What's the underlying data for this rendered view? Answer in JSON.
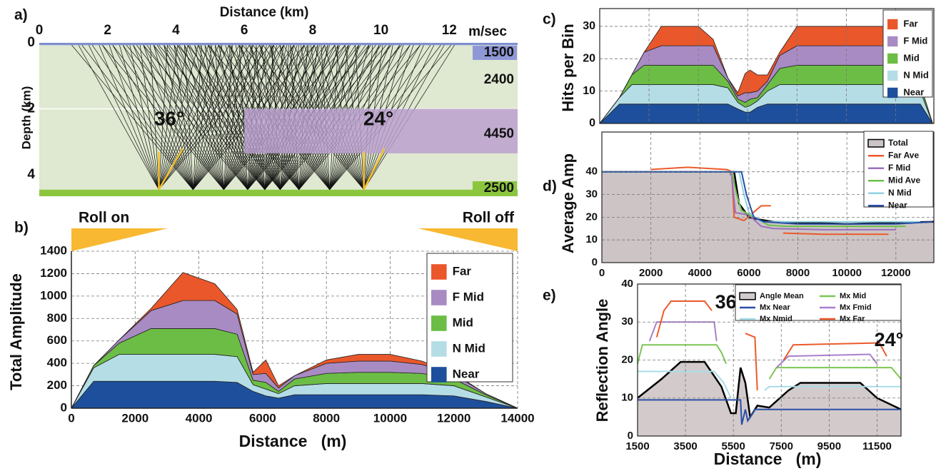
{
  "chart_data": [
    {
      "type": "raypath",
      "panel_label": "a)",
      "title": "Distance (km)",
      "x_unit_label": "m/sec",
      "y_label": "Depth (km)",
      "xlim": [
        0,
        14
      ],
      "ylim": [
        0,
        4.65
      ],
      "xticks": [
        0,
        2,
        4,
        6,
        8,
        10,
        12
      ],
      "yticks": [
        0,
        2,
        4
      ],
      "layers": [
        {
          "velocity": 1500,
          "color": "#7f8fd0",
          "x0": 0,
          "x1": 14,
          "top": 0,
          "bottom": 0.07
        },
        {
          "velocity": 2400,
          "color": "#dfe8d0",
          "x0": 0,
          "x1": 14,
          "top": 0.07,
          "bottom": 4.45
        },
        {
          "velocity": 4450,
          "color": "#bb9fcf",
          "x0": 6,
          "x1": 14,
          "top": 2,
          "bottom": 3.35
        },
        {
          "velocity": 2500,
          "color": "#8cc63f",
          "x0": 0,
          "x1": 14,
          "top": 4.45,
          "bottom": 4.65
        }
      ],
      "annotations": [
        "36°",
        "24°"
      ]
    },
    {
      "type": "stacked_area",
      "panel_label": "b)",
      "x_label": "Distance   (m)",
      "y_label": "Total Amplitude",
      "annotations": [
        "Roll on",
        "Roll off"
      ],
      "xlim": [
        0,
        14000
      ],
      "ylim": [
        0,
        1400
      ],
      "xticks": [
        0,
        2000,
        4000,
        6000,
        8000,
        10000,
        12000,
        14000
      ],
      "yticks": [
        0,
        200,
        400,
        600,
        800,
        1000,
        1200,
        1400
      ],
      "grid": true,
      "legend": "upper right",
      "x": [
        0,
        700,
        1500,
        2500,
        3500,
        4500,
        5200,
        5700,
        6100,
        6500,
        7000,
        8000,
        9000,
        10000,
        11000,
        12000,
        13000,
        14000
      ],
      "series": [
        {
          "name": "Near",
          "color": "#1d4f9c",
          "values": [
            0,
            240,
            240,
            240,
            240,
            240,
            230,
            150,
            110,
            90,
            120,
            120,
            120,
            120,
            120,
            110,
            60,
            0
          ]
        },
        {
          "name": "N Mid",
          "color": "#b5dde6",
          "values": [
            0,
            120,
            240,
            240,
            240,
            240,
            230,
            60,
            60,
            40,
            80,
            100,
            100,
            100,
            100,
            90,
            40,
            0
          ]
        },
        {
          "name": "Mid",
          "color": "#6cbd45",
          "values": [
            0,
            20,
            100,
            230,
            230,
            230,
            200,
            40,
            60,
            20,
            60,
            90,
            100,
            100,
            90,
            60,
            20,
            0
          ]
        },
        {
          "name": "F Mid",
          "color": "#a98bc3",
          "values": [
            0,
            0,
            30,
            160,
            250,
            250,
            180,
            50,
            80,
            30,
            30,
            90,
            100,
            100,
            80,
            40,
            10,
            0
          ]
        },
        {
          "name": "Far",
          "color": "#e9572b",
          "values": [
            0,
            0,
            0,
            20,
            250,
            150,
            40,
            20,
            120,
            20,
            0,
            30,
            60,
            60,
            30,
            10,
            0,
            0
          ]
        }
      ]
    },
    {
      "type": "stacked_area",
      "panel_label": "c)",
      "y_label": "Hits per Bin",
      "xlim": [
        0,
        13550
      ],
      "ylim": [
        0,
        35.5
      ],
      "yticks": [
        0,
        10,
        20,
        30
      ],
      "grid": true,
      "legend": "upper right",
      "x": [
        0,
        800,
        1300,
        1800,
        2500,
        4000,
        4600,
        5200,
        5600,
        5900,
        6100,
        6400,
        6800,
        7300,
        8000,
        11500,
        12300,
        13000,
        13500
      ],
      "series": [
        {
          "name": "Near",
          "color": "#1d4f9c",
          "values": [
            0,
            6,
            6,
            6,
            6,
            6,
            6,
            6,
            4.5,
            3.5,
            3.5,
            5,
            6,
            6,
            6,
            6,
            6,
            6,
            0
          ]
        },
        {
          "name": "N Mid",
          "color": "#b5dde6",
          "values": [
            0,
            2,
            6,
            6,
            6,
            6,
            6,
            5,
            2,
            1.5,
            2,
            2,
            4,
            6,
            6,
            6,
            6,
            4,
            0
          ]
        },
        {
          "name": "Mid",
          "color": "#6cbd45",
          "values": [
            0,
            0,
            3,
            6,
            6,
            6,
            6,
            2,
            1,
            1.5,
            2,
            1,
            2,
            5,
            6,
            6,
            6,
            2,
            0
          ]
        },
        {
          "name": "F Mid",
          "color": "#a98bc3",
          "values": [
            0,
            0,
            0,
            4,
            6,
            6,
            6,
            1,
            1,
            3,
            2,
            2,
            1,
            4,
            6,
            6,
            5,
            0,
            0
          ]
        },
        {
          "name": "Far",
          "color": "#e9572b",
          "values": [
            0,
            0,
            0,
            0,
            6,
            6,
            2,
            0,
            1,
            6,
            7,
            5,
            2,
            1,
            6,
            6,
            2,
            0,
            0
          ]
        }
      ]
    },
    {
      "type": "line",
      "panel_label": "d)",
      "y_label": "Average Amp",
      "xlim": [
        0,
        13550
      ],
      "ylim": [
        0,
        57.5
      ],
      "xticks": [
        0,
        2000,
        4000,
        6000,
        8000,
        10000,
        12000
      ],
      "yticks": [
        0,
        10,
        20,
        30,
        40
      ],
      "grid": true,
      "legend": "upper right",
      "series": [
        {
          "name": "Total",
          "color": "#000000",
          "fill": "#cdc5c5",
          "x": [
            0,
            5400,
            5600,
            6000,
            6400,
            7000,
            10000,
            13550
          ],
          "values": [
            40,
            40,
            26,
            20,
            19,
            18,
            17,
            18
          ]
        },
        {
          "name": "Far Ave",
          "color": "#ec5a2a",
          "x": [
            2000,
            3500,
            5100,
            5300,
            5400,
            5800,
            6500,
            6900,
            7100,
            7400,
            9000,
            11700
          ],
          "values": [
            41,
            42,
            41,
            40,
            20,
            18.5,
            25,
            25,
            null,
            13,
            12.5,
            12.5
          ]
        },
        {
          "name": "F Mid",
          "color": "#9b6fc0",
          "x": [
            0,
            5200,
            5300,
            5450,
            6000,
            6500,
            7000,
            9000,
            12000
          ],
          "values": [
            40,
            40,
            38,
            22,
            21,
            16,
            15,
            14.5,
            14.5
          ]
        },
        {
          "name": "Mid Ave",
          "color": "#6cc04a",
          "x": [
            0,
            5300,
            5500,
            5700,
            6200,
            6800,
            7500,
            10000,
            12400
          ],
          "values": [
            40,
            40,
            30,
            23,
            20,
            16.5,
            16,
            16,
            16
          ]
        },
        {
          "name": "N Mid",
          "color": "#8fd3e3",
          "x": [
            0,
            5600,
            5800,
            6000,
            6500,
            7500,
            10000,
            13000
          ],
          "values": [
            40,
            40,
            30,
            22,
            18,
            18,
            18,
            18
          ]
        },
        {
          "name": "Near",
          "color": "#2a4fa8",
          "x": [
            0,
            5700,
            5900,
            6200,
            6600,
            8000,
            12000,
            13500
          ],
          "values": [
            40,
            40,
            30,
            20,
            18,
            17,
            17,
            18
          ]
        }
      ]
    },
    {
      "type": "line",
      "panel_label": "e)",
      "x_label": "Distance   (m)",
      "y_label": "Reflection Angle",
      "annotations": [
        "36°",
        "24°"
      ],
      "xlim": [
        1500,
        12500
      ],
      "ylim": [
        0,
        40
      ],
      "xticks": [
        1500,
        3500,
        5500,
        7500,
        9500,
        11500
      ],
      "yticks": [
        0,
        10,
        20,
        30,
        40
      ],
      "grid": true,
      "legend": "upper right",
      "series": [
        {
          "name": "Angle Mean",
          "color": "#000000",
          "fill": "#d3cbcb",
          "x": [
            1500,
            2500,
            3300,
            4300,
            5000,
            5400,
            5600,
            5800,
            6000,
            6200,
            6500,
            7000,
            7800,
            8300,
            10800,
            11500,
            12500
          ],
          "values": [
            10,
            15,
            19.5,
            19.5,
            13,
            6,
            6,
            18,
            14,
            5,
            8,
            7.5,
            12,
            14,
            14,
            10,
            7
          ]
        },
        {
          "name": "Mx Near",
          "color": "#2a4fa8",
          "x": [
            1500,
            5800,
            5850,
            6000,
            6100,
            6400,
            12500
          ],
          "values": [
            9.5,
            9.5,
            3,
            7,
            4,
            7,
            7
          ]
        },
        {
          "name": "Mx Nmid",
          "color": "#a8dce8",
          "x": [
            1500,
            4700,
            5100,
            5400,
            6000,
            6800,
            7000,
            12500
          ],
          "values": [
            17,
            17,
            14,
            10,
            null,
            12,
            13,
            13
          ]
        },
        {
          "name": "Mx Mid",
          "color": "#7cc653",
          "x": [
            1500,
            1700,
            4800,
            5000,
            5200,
            6000,
            7000,
            7300,
            12100,
            12500
          ],
          "values": [
            19,
            24,
            24,
            22,
            19,
            null,
            15,
            18,
            18,
            15
          ]
        },
        {
          "name": "Mx Fmid",
          "color": "#a97fcb",
          "x": [
            2000,
            2300,
            4700,
            4800,
            6000,
            7300,
            7800,
            11200,
            11500
          ],
          "values": [
            25,
            30,
            30,
            25,
            null,
            18,
            21,
            21.5,
            19
          ]
        },
        {
          "name": "Mx Far",
          "color": "#ec5a2a",
          "x": [
            2300,
            2600,
            2900,
            4300,
            4600,
            5000,
            6000,
            6400,
            6500,
            7000,
            7600,
            8000,
            11600,
            11900
          ],
          "values": [
            26,
            33,
            35.5,
            35.5,
            33,
            null,
            27,
            26,
            12,
            null,
            20,
            24,
            24.5,
            21
          ]
        }
      ]
    }
  ]
}
